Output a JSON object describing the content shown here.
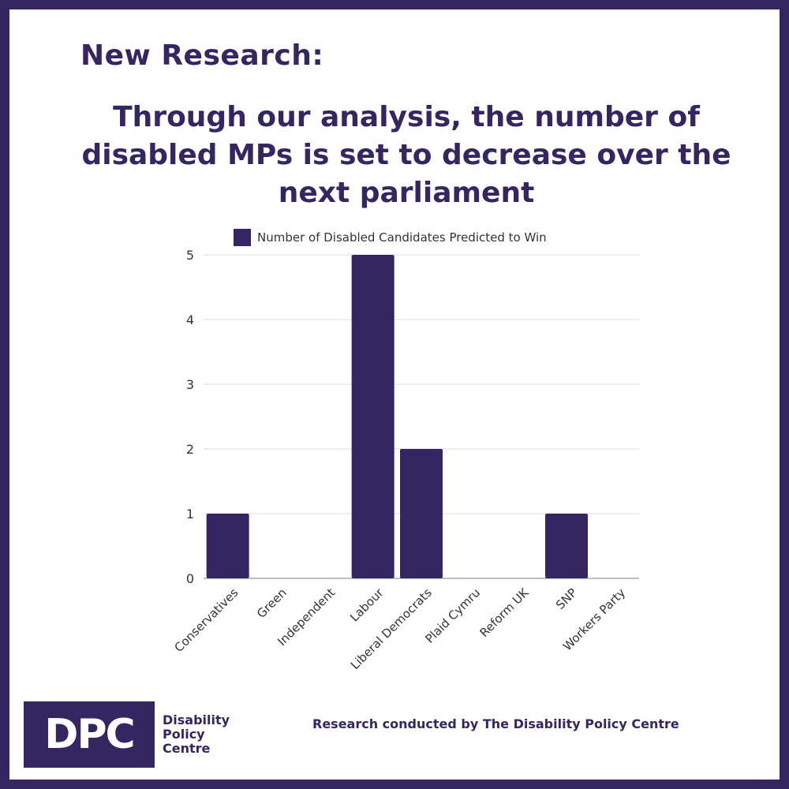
{
  "header": {
    "title": "New Research:",
    "subtitle_lines": [
      "Through our analysis, the number of",
      "disabled MPs is set to decrease over the",
      "next parliament"
    ]
  },
  "chart_data": {
    "type": "bar",
    "categories": [
      "Conservatives",
      "Green",
      "Independent",
      "Labour",
      "Liberal Democrats",
      "Plaid Cymru",
      "Reform UK",
      "SNP",
      "Workers Party"
    ],
    "series": [
      {
        "name": "Number of Disabled Candidates Predicted to Win",
        "values": [
          1,
          0,
          0,
          5,
          2,
          0,
          0,
          1,
          0
        ]
      }
    ],
    "ylim": [
      0,
      5
    ],
    "yticks": [
      "0",
      "1",
      "2",
      "3",
      "4",
      "5"
    ],
    "xlabel": "",
    "ylabel": "",
    "grid": true,
    "legend_position": "top",
    "bar_color": "#352560",
    "grid_color": "#dddddd"
  },
  "footer": {
    "logo_text": "DPC",
    "logo_name_lines": [
      "Disability",
      "Policy",
      "Centre"
    ],
    "credit": "Research conducted by The Disability Policy Centre"
  },
  "colors": {
    "brand": "#352560",
    "background": "#ffffff"
  }
}
